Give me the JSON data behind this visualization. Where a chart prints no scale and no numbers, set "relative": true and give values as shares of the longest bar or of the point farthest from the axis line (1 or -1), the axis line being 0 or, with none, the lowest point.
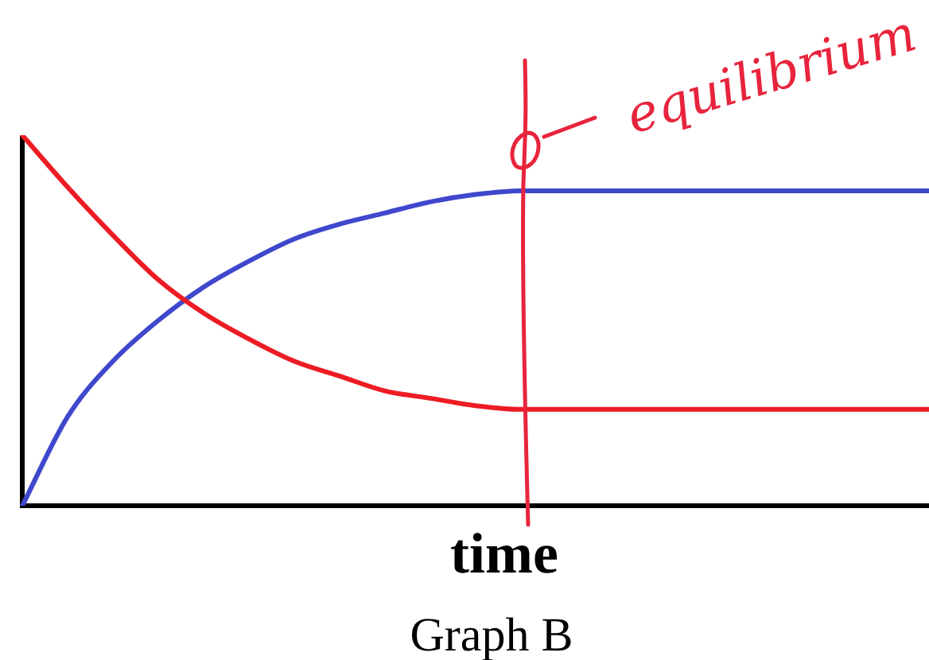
{
  "chart_data": {
    "type": "line",
    "relative": true,
    "xlabel": "time",
    "categories": [
      null,
      null,
      null,
      null,
      null,
      null,
      null,
      null,
      null,
      null,
      null,
      null,
      null,
      null,
      null,
      null,
      null,
      null,
      null,
      null,
      null
    ],
    "series": [
      {
        "color": "#ed1c24",
        "values": [
          1.0,
          0.86,
          0.73,
          0.61,
          0.52,
          0.45,
          0.39,
          0.35,
          0.31,
          0.29,
          0.27,
          0.26,
          0.26,
          0.26,
          0.26,
          0.26,
          0.26,
          0.26,
          0.26,
          0.26,
          0.26
        ]
      },
      {
        "color": "#3f48cc",
        "values": [
          0.0,
          0.24,
          0.39,
          0.5,
          0.59,
          0.66,
          0.72,
          0.76,
          0.79,
          0.82,
          0.84,
          0.85,
          0.85,
          0.85,
          0.85,
          0.85,
          0.85,
          0.85,
          0.85,
          0.85,
          0.85
        ]
      }
    ],
    "annotations": [
      "equilibrium",
      "Graph B"
    ],
    "legend": false,
    "marker": "none",
    "line_style": "solid"
  }
}
